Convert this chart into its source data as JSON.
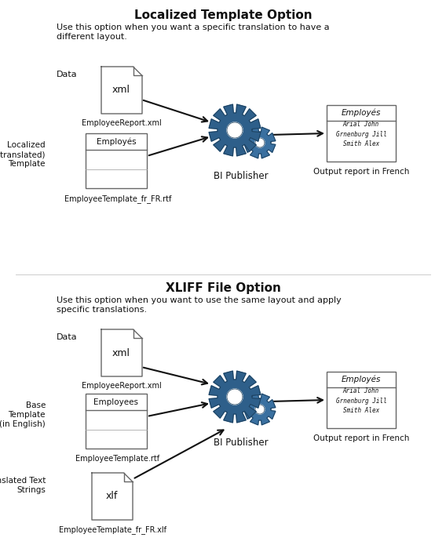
{
  "title1": "Localized Template Option",
  "subtitle1": "Use this option when you want a specific translation to have a\ndifferent layout.",
  "title2": "XLIFF File Option",
  "subtitle2": "Use this option when you want to use the same layout and apply\nspecific translations.",
  "bg_color": "#ffffff",
  "gear_color_main": "#2e5f8a",
  "gear_color_small": "#3a70a0",
  "gear_edge": "#1a3d5a",
  "box_edge": "#666666",
  "arrow_color": "#111111",
  "text_color": "#111111",
  "section1": {
    "data_label": "Data",
    "data_file": "xml",
    "data_filename": "EmployeeReport.xml",
    "template_label": "Localized\n(or translated)\nTemplate",
    "template_header": "Employés",
    "template_filename": "EmployeeTemplate_fr_FR.rtf",
    "publisher_label": "BI Publisher",
    "output_header": "Employés",
    "output_content": "Arial John\nGrnenburg Jill\nSmith Alex",
    "output_label": "Output report in French"
  },
  "section2": {
    "data_label": "Data",
    "data_file": "xml",
    "data_filename": "EmployeeReport.xml",
    "template_label": "Base\nTemplate\n(in English)",
    "template_header": "Employees",
    "template_filename": "EmployeeTemplate.rtf",
    "publisher_label": "BI Publisher",
    "output_header": "Employés",
    "output_content": "Arial John\nGrnenburg Jill\nSmith Alex",
    "output_label": "Output report in French",
    "xliff_label": "Translated Text\nStrings",
    "xliff_file": "xlf",
    "xliff_filename": "EmployeeTemplate_fr_FR.xlf"
  }
}
